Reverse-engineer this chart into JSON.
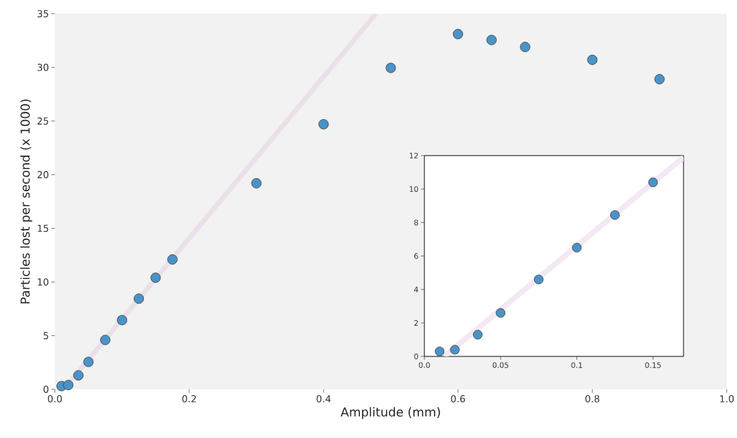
{
  "chart_data": [
    {
      "type": "scatter",
      "xlabel": "Amplitude (mm)",
      "ylabel": "Particles lost per second (x 1000)",
      "xlim": [
        0,
        1
      ],
      "ylim": [
        0,
        35
      ],
      "xticks": [
        {
          "value": 0,
          "label": "0.0"
        },
        {
          "value": 0.2,
          "label": "0.2"
        },
        {
          "value": 0.4,
          "label": "0.4"
        },
        {
          "value": 0.6,
          "label": "0.6"
        },
        {
          "value": 0.8,
          "label": "0.8"
        },
        {
          "value": 1,
          "label": "1.0"
        }
      ],
      "yticks": [
        0,
        5,
        10,
        15,
        20,
        25,
        30,
        35
      ],
      "series": [
        {
          "type": "line",
          "color": "#ebdfea",
          "x": [
            0.013,
            0.478
          ],
          "values": [
            0,
            35
          ]
        },
        {
          "color": "#4a93c9",
          "marker": "circle",
          "x": [
            0.01,
            0.02,
            0.035,
            0.05,
            0.075,
            0.1,
            0.125,
            0.15,
            0.175,
            0.3,
            0.4,
            0.5,
            0.6,
            0.65,
            0.7,
            0.8,
            0.9
          ],
          "values": [
            0.3,
            0.4,
            1.3,
            2.55,
            4.6,
            6.45,
            8.45,
            10.4,
            12.1,
            19.2,
            24.7,
            29.95,
            33.1,
            32.55,
            31.9,
            30.7,
            28.9
          ]
        }
      ]
    },
    {
      "type": "scatter",
      "xlim": [
        0,
        0.17
      ],
      "ylim": [
        0,
        12
      ],
      "xticks": [
        {
          "value": 0,
          "label": "0.0"
        },
        0.05,
        0.1,
        0.15
      ],
      "yticks": [
        0,
        2,
        4,
        6,
        8,
        10,
        12
      ],
      "series": [
        {
          "type": "line",
          "color": "#f3e8f3",
          "x": [
            0.013,
            0.17
          ],
          "values": [
            0,
            11.9
          ]
        },
        {
          "color": "#4a93c9",
          "marker": "circle",
          "x": [
            0.01,
            0.02,
            0.035,
            0.05,
            0.075,
            0.1,
            0.125,
            0.15
          ],
          "values": [
            0.3,
            0.4,
            1.3,
            2.6,
            4.6,
            6.5,
            8.45,
            10.4
          ]
        }
      ]
    }
  ]
}
